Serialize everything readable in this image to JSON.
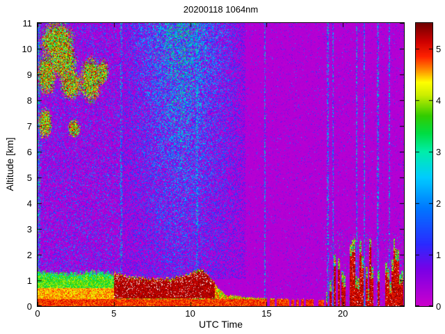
{
  "figure": {
    "title": "20200118 1064nm",
    "xlabel": "UTC Time",
    "ylabel": "Altitude [km]"
  },
  "chart_data": {
    "type": "heatmap",
    "title": "20200118 1064nm",
    "xlabel": "UTC Time",
    "ylabel": "Altitude [km]",
    "xlim": [
      0,
      24
    ],
    "ylim": [
      0,
      11
    ],
    "xticks": [
      0,
      5,
      10,
      15,
      20
    ],
    "yticks": [
      0,
      1,
      2,
      3,
      4,
      5,
      6,
      7,
      8,
      9,
      10,
      11
    ],
    "grid": false,
    "colorbar": {
      "vmin": 0,
      "vmax": 5.5,
      "ticks": [
        0,
        1,
        2,
        3,
        4,
        5
      ],
      "position": "right"
    },
    "colormap": [
      [
        0.0,
        "#cc00cc"
      ],
      [
        0.7,
        "#7a00e6"
      ],
      [
        1.2,
        "#2a2aff"
      ],
      [
        1.9,
        "#0077ff"
      ],
      [
        2.5,
        "#00ccff"
      ],
      [
        3.0,
        "#00eeaa"
      ],
      [
        3.35,
        "#00dd44"
      ],
      [
        3.7,
        "#33cc00"
      ],
      [
        4.1,
        "#ccee00"
      ],
      [
        4.35,
        "#ffff00"
      ],
      [
        4.6,
        "#ff8800"
      ],
      [
        4.85,
        "#ff2200"
      ],
      [
        5.15,
        "#cc0000"
      ],
      [
        5.5,
        "#700000"
      ]
    ],
    "features": {
      "background": {
        "base": 0.12,
        "jitter": 0.18,
        "dot_prob": 0.012,
        "dot_value": [
          0.6,
          2.4
        ]
      },
      "left_edge_stripe": {
        "t": [
          0,
          0.18
        ],
        "prob": 0.55,
        "value": [
          0.8,
          4.0
        ]
      },
      "left_noise": {
        "t": [
          0,
          5.45
        ],
        "h_min": 1.25,
        "prob": 0.3,
        "value": [
          0.4,
          2.4
        ]
      },
      "mid_column": {
        "t": [
          5.45,
          13.6
        ],
        "h_min": 1.05,
        "center": 9.4,
        "half_width": 4.2,
        "base_prob": 0.22,
        "prob_gain": 0.62,
        "value_base": 0.7,
        "value_spread": 0.8,
        "value_gain": 2.4
      },
      "right_noise": {
        "t": [
          13.6,
          24
        ],
        "prob": 0.03,
        "value": [
          0.4,
          2.0
        ]
      },
      "stripes": {
        "times": [
          5.5,
          10.45,
          14.9,
          19.0,
          19.35,
          20.9,
          21.4,
          22.3,
          23.05
        ],
        "half_width": 0.06,
        "prob": 0.5,
        "value": [
          0.9,
          3.2
        ]
      },
      "cirrus_blobs": [
        {
          "cx": 1.3,
          "cy": 10.3,
          "rx": 1.25,
          "ry": 0.85
        },
        {
          "cx": 0.6,
          "cy": 9.0,
          "rx": 0.7,
          "ry": 0.9
        },
        {
          "cx": 2.2,
          "cy": 8.6,
          "rx": 0.8,
          "ry": 0.65
        },
        {
          "cx": 3.5,
          "cy": 8.8,
          "rx": 0.8,
          "ry": 1.0
        },
        {
          "cx": 0.5,
          "cy": 7.1,
          "rx": 0.5,
          "ry": 0.65
        },
        {
          "cx": 2.4,
          "cy": 6.9,
          "rx": 0.45,
          "ry": 0.4
        },
        {
          "cx": 4.3,
          "cy": 9.1,
          "rx": 0.4,
          "ry": 0.55
        },
        {
          "cx": 1.7,
          "cy": 9.5,
          "rx": 1.0,
          "ry": 0.8
        }
      ],
      "cirrus_value": [
        2.6,
        5.5
      ],
      "boundary_layer": {
        "top_points": [
          [
            0,
            1.35
          ],
          [
            1,
            1.3
          ],
          [
            2,
            1.25
          ],
          [
            3,
            1.3
          ],
          [
            4,
            1.33
          ],
          [
            5,
            1.28
          ],
          [
            6,
            1.15
          ],
          [
            7,
            1.08
          ],
          [
            8,
            1.05
          ],
          [
            9,
            1.1
          ],
          [
            10,
            1.22
          ],
          [
            10.8,
            1.45
          ],
          [
            11.3,
            1.15
          ],
          [
            11.8,
            0.75
          ],
          [
            12.3,
            0.45
          ],
          [
            13,
            0.4
          ],
          [
            14,
            0.34
          ],
          [
            15,
            0.3
          ],
          [
            16,
            0.28
          ],
          [
            17,
            0.26
          ],
          [
            18,
            0.25
          ],
          [
            18.7,
            0.24
          ]
        ],
        "dark_band": {
          "t": [
            5.0,
            11.6
          ],
          "value": [
            5.0,
            5.5
          ],
          "white_prob": 0.06
        },
        "surface_red": {
          "h": 0.28,
          "value": [
            4.5,
            5.2
          ]
        },
        "mid_value": [
          4.1,
          4.9
        ],
        "upper_value": [
          3.1,
          4.3
        ],
        "top_edge_value": [
          2.6,
          4.1
        ],
        "thin_mix_value": [
          3.4,
          5.1
        ],
        "thin_gap_t_start": 14.6,
        "thin_gap_prob": 0.45
      },
      "evening": {
        "t": [
          18.75,
          24
        ],
        "col_width": 0.13,
        "presence": 0.62,
        "top_range": [
          0.5,
          2.65
        ],
        "core_value": [
          4.8,
          5.5
        ],
        "edge_value": [
          2.2,
          5.5
        ],
        "white_prob": 0.04,
        "dot_prob": 0.05,
        "dot_hmax": 2.9
      }
    }
  }
}
